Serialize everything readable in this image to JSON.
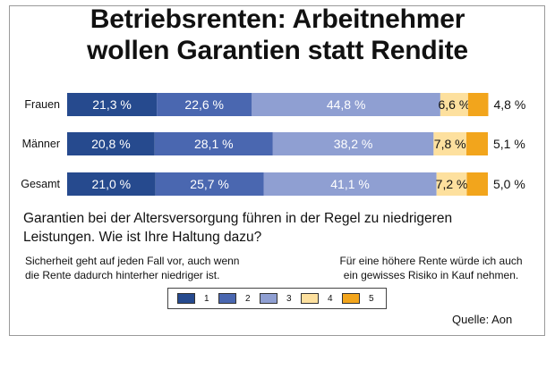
{
  "title_line1": "Betriebsrenten: Arbeitnehmer",
  "title_line2": "wollen Garantien statt Rendite",
  "question": "Garantien bei der Altersversorgung führen in der Regel zu niedrigeren Leistungen. Wie ist Ihre Haltung dazu?",
  "left_note": "Sicherheit geht auf jeden Fall vor, auch wenn die Rente dadurch hinterher niedriger ist.",
  "right_note": "Für eine höhere Rente würde ich auch ein gewisses Risiko in Kauf nehmen.",
  "source": "Quelle: Aon",
  "colors": [
    "#264a8e",
    "#4a67b0",
    "#8f9fd2",
    "#fde09e",
    "#f2a51c"
  ],
  "legend": [
    "1",
    "2",
    "3",
    "4",
    "5"
  ],
  "chart_data": {
    "type": "bar",
    "orientation": "horizontal",
    "stacked": true,
    "categories": [
      "Frauen",
      "Männer",
      "Gesamt"
    ],
    "series": [
      {
        "name": "1",
        "values": [
          21.3,
          20.8,
          21.0
        ],
        "labels": [
          "21,3 %",
          "20,8 %",
          "21,0 %"
        ]
      },
      {
        "name": "2",
        "values": [
          22.6,
          28.1,
          25.7
        ],
        "labels": [
          "22,6 %",
          "28,1 %",
          "25,7 %"
        ]
      },
      {
        "name": "3",
        "values": [
          44.8,
          38.2,
          41.1
        ],
        "labels": [
          "44,8 %",
          "38,2 %",
          "41,1 %"
        ]
      },
      {
        "name": "4",
        "values": [
          6.6,
          7.8,
          7.2
        ],
        "labels": [
          "6,6 %",
          "7,8 %",
          "7,2 %"
        ]
      },
      {
        "name": "5",
        "values": [
          4.8,
          5.1,
          5.0
        ],
        "labels": [
          "4,8 %",
          "5,1 %",
          "5,0 %"
        ]
      }
    ],
    "title": "Betriebsrenten: Arbeitnehmer wollen Garantien statt Rendite",
    "xlim": [
      0,
      100
    ]
  }
}
